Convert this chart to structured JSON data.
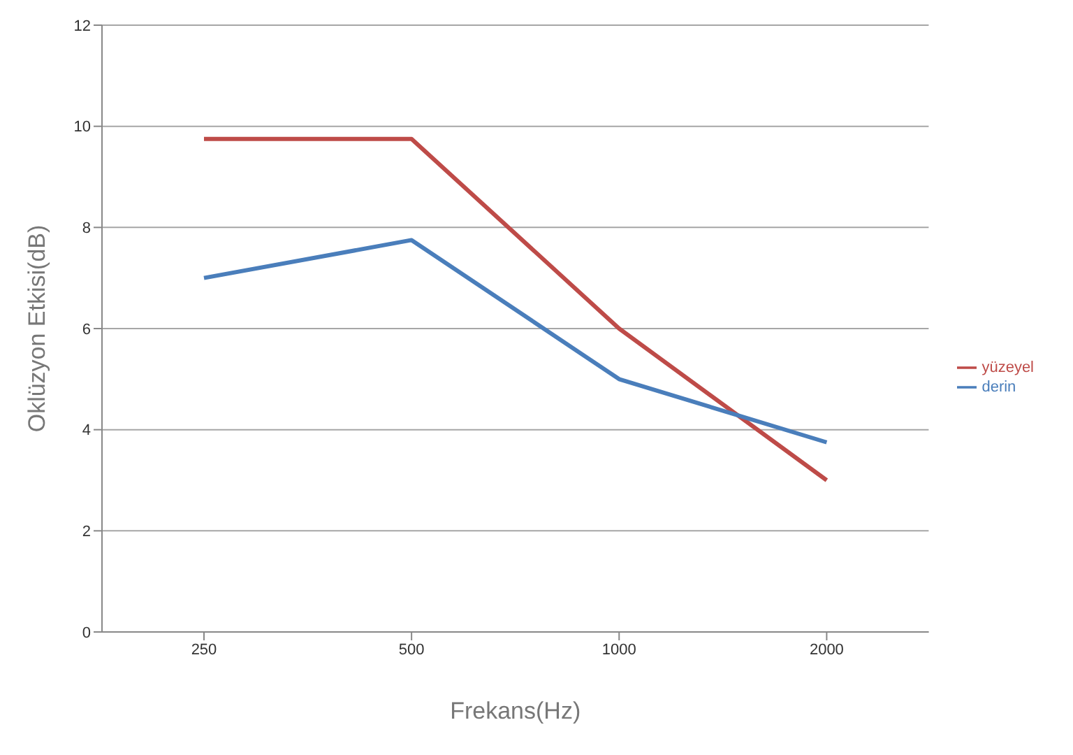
{
  "chart_data": {
    "type": "line",
    "xlabel": "Frekans(Hz)",
    "ylabel": "Oklüzyon Etkisi(dB)",
    "categories": [
      "250",
      "500",
      "1000",
      "2000"
    ],
    "series": [
      {
        "name": "yüzeyel",
        "color": "#be4b48",
        "values": [
          9.75,
          9.75,
          6,
          3
        ]
      },
      {
        "name": "derin",
        "color": "#4a7ebb",
        "values": [
          7,
          7.75,
          5,
          3.75
        ]
      }
    ],
    "ylim": [
      0,
      12
    ],
    "yticks": [
      0,
      2,
      4,
      6,
      8,
      10,
      12
    ],
    "grid": "y",
    "legend": "right",
    "marker": "none",
    "line_style": "solid"
  }
}
